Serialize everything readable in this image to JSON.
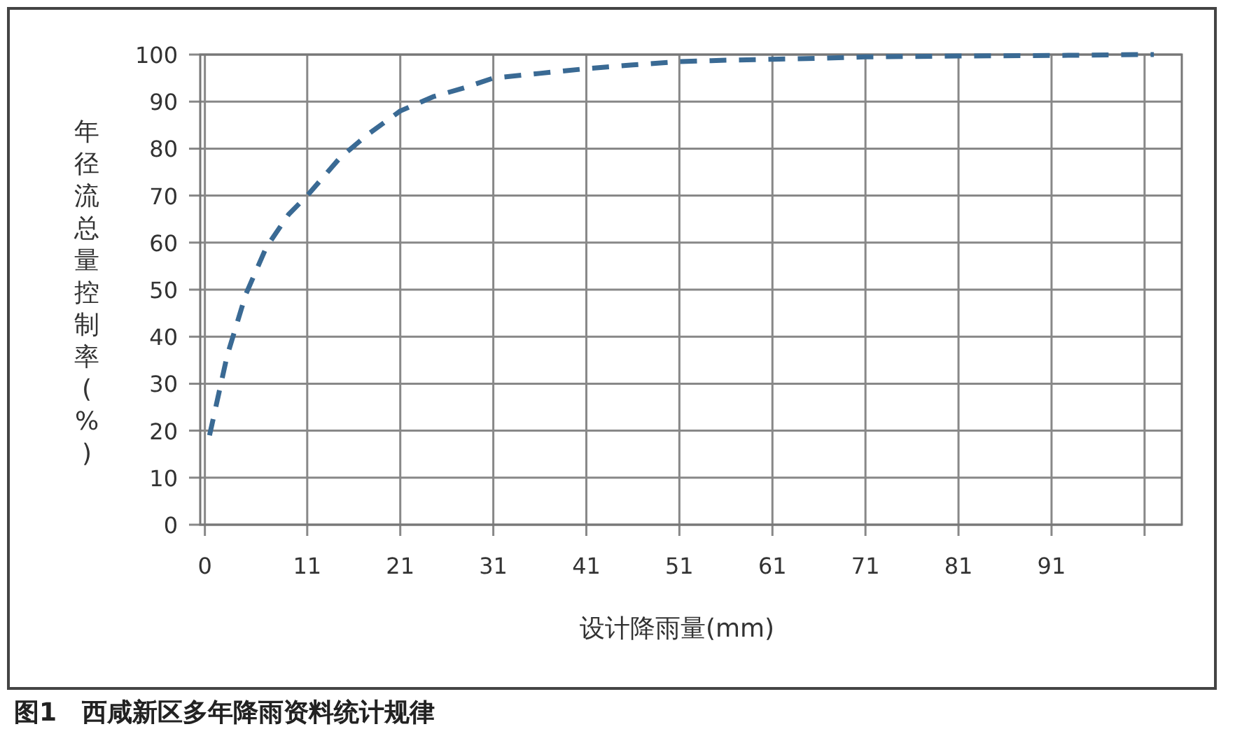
{
  "chart_data": {
    "type": "line",
    "xlabel": "设计降雨量(mm)",
    "ylabel": "年径流总量控制率(%)",
    "annotations": [
      "图1　西咸新区多年降雨资料统计规律"
    ],
    "xlim": [
      -0.5,
      105
    ],
    "ylim": [
      0,
      100
    ],
    "xticks": [
      0,
      11,
      21,
      31,
      41,
      51,
      61,
      71,
      81,
      91,
      {
        "value": 101,
        "label": null
      }
    ],
    "yticks": [
      0,
      10,
      20,
      30,
      40,
      50,
      60,
      70,
      80,
      90,
      100
    ],
    "grid": true,
    "marker": "none",
    "line_style": "dashed",
    "series": [
      {
        "color": "#3a6a94",
        "x": [
          0.5,
          2.4,
          4.4,
          6.6,
          9,
          11,
          14.5,
          17.5,
          21,
          24.5,
          28,
          31,
          36,
          41,
          46,
          51,
          56,
          61,
          66,
          71,
          81,
          91,
          101,
          102
        ],
        "values": [
          19,
          36,
          49,
          59,
          66,
          70,
          78,
          83,
          88,
          91,
          93,
          95,
          96,
          97,
          97.8,
          98.5,
          98.8,
          99,
          99.2,
          99.5,
          99.7,
          99.8,
          100,
          100
        ]
      }
    ]
  }
}
